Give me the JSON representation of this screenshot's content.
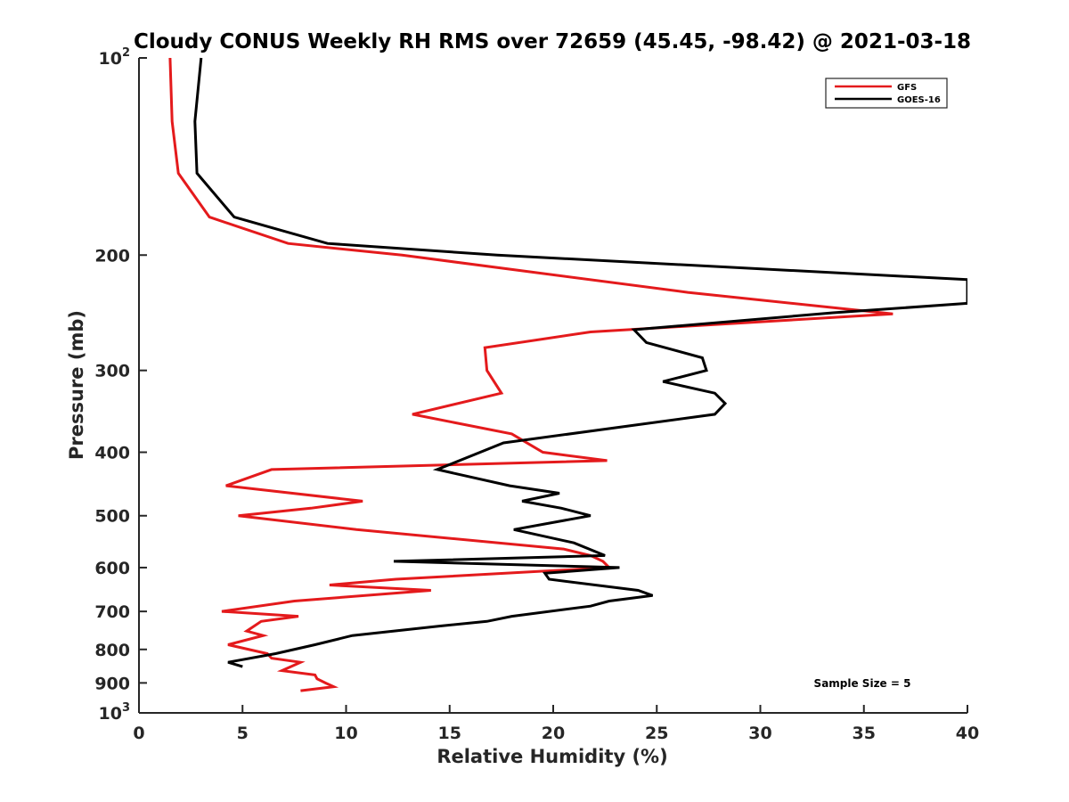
{
  "chart_data": {
    "type": "line",
    "title": "Cloudy CONUS Weekly RH RMS over 72659 (45.45, -98.42) @ 2021-03-18",
    "xlabel": "Relative Humidity (%)",
    "ylabel": "Pressure (mb)",
    "xlim": [
      0,
      40
    ],
    "ylim": [
      100,
      1000
    ],
    "y_scale": "log",
    "y_reversed": true,
    "grid": false,
    "legend_position": "top-right",
    "x_ticks": [
      "0",
      "5",
      "10",
      "15",
      "20",
      "25",
      "30",
      "35",
      "40"
    ],
    "y_ticks": [
      {
        "value": 100,
        "label": "10",
        "exp": "2"
      },
      {
        "value": 200,
        "label": "200"
      },
      {
        "value": 300,
        "label": "300"
      },
      {
        "value": 400,
        "label": "400"
      },
      {
        "value": 500,
        "label": "500"
      },
      {
        "value": 600,
        "label": "600"
      },
      {
        "value": 700,
        "label": "700"
      },
      {
        "value": 800,
        "label": "800"
      },
      {
        "value": 900,
        "label": "900"
      },
      {
        "value": 1000,
        "label": "10",
        "exp": "3"
      }
    ],
    "annotation": "Sample Size = 5",
    "series": [
      {
        "name": "GFS",
        "color": "#e41a1c",
        "points": [
          [
            1.5,
            100
          ],
          [
            1.6,
            125
          ],
          [
            1.9,
            150
          ],
          [
            3.4,
            175
          ],
          [
            7.2,
            192
          ],
          [
            12.7,
            200
          ],
          [
            26.5,
            228
          ],
          [
            36.4,
            246
          ],
          [
            21.8,
            262
          ],
          [
            16.7,
            277
          ],
          [
            16.8,
            300
          ],
          [
            17.5,
            325
          ],
          [
            13.2,
            350
          ],
          [
            18.0,
            375
          ],
          [
            19.5,
            400
          ],
          [
            22.6,
            412
          ],
          [
            6.4,
            425
          ],
          [
            4.2,
            450
          ],
          [
            10.8,
            475
          ],
          [
            8.3,
            487
          ],
          [
            4.8,
            500
          ],
          [
            10.5,
            525
          ],
          [
            20.5,
            562
          ],
          [
            21.8,
            575
          ],
          [
            22.4,
            587
          ],
          [
            22.7,
            600
          ],
          [
            12.4,
            625
          ],
          [
            9.2,
            638
          ],
          [
            14.1,
            650
          ],
          [
            7.5,
            675
          ],
          [
            4.0,
            700
          ],
          [
            7.7,
            712
          ],
          [
            5.9,
            725
          ],
          [
            5.2,
            750
          ],
          [
            6.0,
            762
          ],
          [
            4.3,
            787
          ],
          [
            6.2,
            812
          ],
          [
            6.4,
            825
          ],
          [
            7.8,
            837
          ],
          [
            6.9,
            862
          ],
          [
            8.5,
            875
          ],
          [
            8.6,
            887
          ],
          [
            9.0,
            900
          ],
          [
            9.4,
            912
          ],
          [
            7.8,
            925
          ]
        ]
      },
      {
        "name": "GOES-16",
        "color": "#000000",
        "points": [
          [
            3.0,
            100
          ],
          [
            2.7,
            125
          ],
          [
            2.8,
            150
          ],
          [
            4.6,
            175
          ],
          [
            9.1,
            192
          ],
          [
            17.3,
            200
          ],
          [
            40.0,
            218
          ],
          [
            40.0,
            237
          ],
          [
            33.5,
            245
          ],
          [
            23.9,
            260
          ],
          [
            24.5,
            272
          ],
          [
            27.2,
            287
          ],
          [
            27.4,
            300
          ],
          [
            25.3,
            312
          ],
          [
            27.8,
            325
          ],
          [
            28.3,
            337
          ],
          [
            27.8,
            350
          ],
          [
            17.6,
            387
          ],
          [
            14.4,
            425
          ],
          [
            17.9,
            450
          ],
          [
            20.3,
            462
          ],
          [
            18.5,
            475
          ],
          [
            20.4,
            487
          ],
          [
            21.8,
            500
          ],
          [
            18.1,
            525
          ],
          [
            21.0,
            550
          ],
          [
            22.5,
            575
          ],
          [
            12.3,
            587
          ],
          [
            23.2,
            600
          ],
          [
            19.6,
            612
          ],
          [
            19.8,
            625
          ],
          [
            24.1,
            650
          ],
          [
            24.8,
            662
          ],
          [
            22.7,
            675
          ],
          [
            21.8,
            687
          ],
          [
            18.0,
            712
          ],
          [
            16.8,
            725
          ],
          [
            14.5,
            737
          ],
          [
            10.3,
            762
          ],
          [
            8.5,
            787
          ],
          [
            6.6,
            812
          ],
          [
            4.3,
            837
          ],
          [
            5.0,
            850
          ]
        ]
      }
    ]
  }
}
